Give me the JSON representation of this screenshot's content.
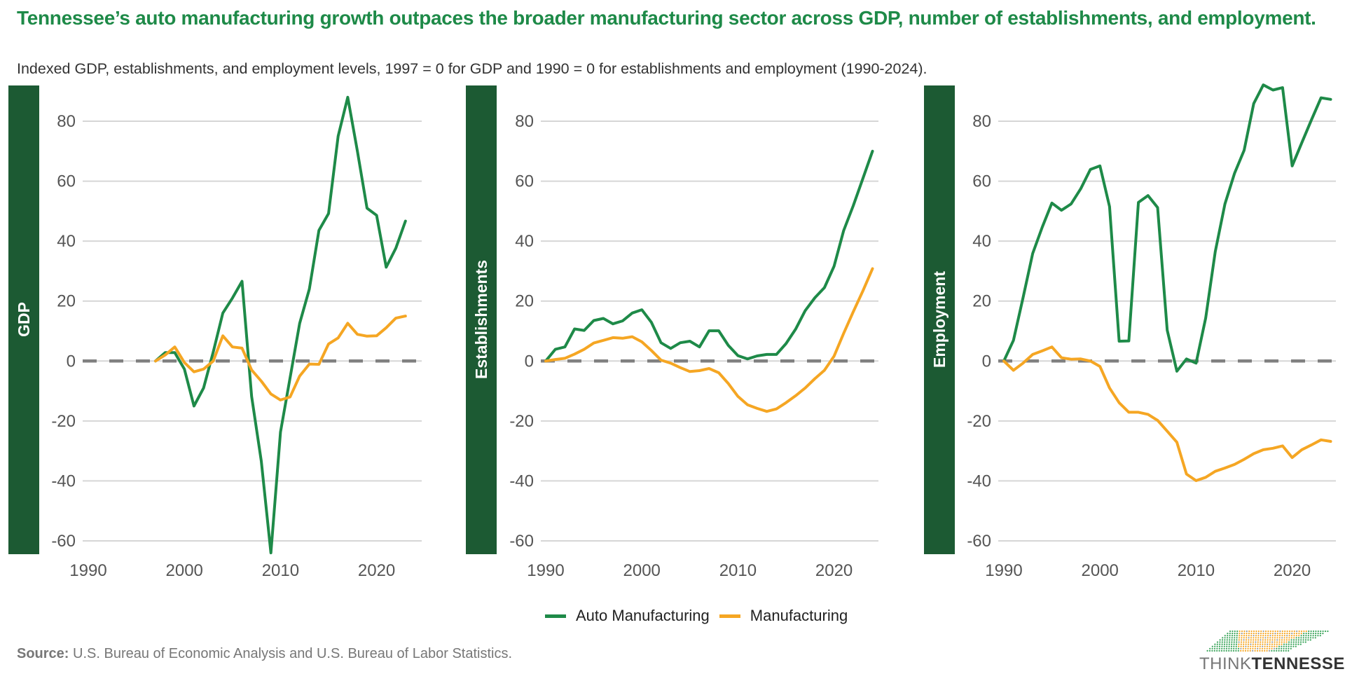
{
  "header": {
    "title": "Tennessee’s auto manufacturing growth outpaces the broader manufacturing sector across GDP, number of establishments, and employment.",
    "subtitle": "Indexed GDP, establishments, and employment levels, 1997 = 0 for GDP and 1990 = 0 for establishments and employment (1990-2024)."
  },
  "legend": {
    "items": [
      {
        "label": "Auto Manufacturing",
        "color": "#1e8a48"
      },
      {
        "label": "Manufacturing",
        "color": "#f5a623"
      }
    ]
  },
  "footer": {
    "source_label": "Source:",
    "source_text": "U.S. Bureau of Economic Analysis and U.S. Bureau of Labor Statistics.",
    "logo_text_light": "THINK",
    "logo_text_bold": "TENNESSEE"
  },
  "colors": {
    "auto": "#1e8a48",
    "manufacturing": "#f5a623",
    "strip": "#1c5a33",
    "zero_line": "#808080",
    "grid": "#d6d6d6"
  },
  "chart_data": [
    {
      "type": "line",
      "strip_label": "GDP",
      "xlim": [
        1990,
        2024
      ],
      "ylim": [
        -60,
        90
      ],
      "xticks": [
        1990,
        2000,
        2010,
        2020
      ],
      "yticks": [
        -60,
        -40,
        -20,
        0,
        20,
        40,
        60,
        80
      ],
      "zero_line": "dashed",
      "grid": true,
      "x": [
        1997,
        1998,
        1999,
        2000,
        2001,
        2002,
        2003,
        2004,
        2005,
        2006,
        2007,
        2008,
        2009,
        2010,
        2011,
        2012,
        2013,
        2014,
        2015,
        2016,
        2017,
        2018,
        2019,
        2020,
        2021,
        2022,
        2023
      ],
      "series": [
        {
          "name": "Auto Manufacturing",
          "values": [
            0,
            2.8,
            2.8,
            -2.7,
            -15,
            -9,
            3,
            16,
            21,
            26.6,
            -11.8,
            -33.4,
            -64,
            -23.7,
            -5.6,
            12.6,
            24,
            43.6,
            49.2,
            75,
            88,
            70,
            51,
            48.6,
            31.3,
            37.6,
            46.7
          ]
        },
        {
          "name": "Manufacturing",
          "values": [
            0,
            2,
            4.7,
            -0.5,
            -3.6,
            -2.7,
            0,
            8.4,
            4.7,
            4.3,
            -3,
            -6.7,
            -11,
            -13,
            -12,
            -5,
            -1,
            -1.1,
            5.7,
            7.7,
            12.6,
            8.9,
            8.3,
            8.4,
            11.1,
            14.3,
            15
          ]
        }
      ]
    },
    {
      "type": "line",
      "strip_label": "Establishments",
      "xlim": [
        1990,
        2024
      ],
      "ylim": [
        -60,
        90
      ],
      "xticks": [
        1990,
        2000,
        2010,
        2020
      ],
      "yticks": [
        -60,
        -40,
        -20,
        0,
        20,
        40,
        60,
        80
      ],
      "zero_line": "dashed",
      "grid": true,
      "x": [
        1990,
        1991,
        1992,
        1993,
        1994,
        1995,
        1996,
        1997,
        1998,
        1999,
        2000,
        2001,
        2002,
        2003,
        2004,
        2005,
        2006,
        2007,
        2008,
        2009,
        2010,
        2011,
        2012,
        2013,
        2014,
        2015,
        2016,
        2017,
        2018,
        2019,
        2020,
        2021,
        2022,
        2023,
        2024
      ],
      "series": [
        {
          "name": "Auto Manufacturing",
          "values": [
            0,
            3.9,
            4.7,
            10.7,
            10.2,
            13.5,
            14.2,
            12.4,
            13.4,
            16,
            17.1,
            12.9,
            6.1,
            4.2,
            6.1,
            6.6,
            4.7,
            10.1,
            10.1,
            5.2,
            1.8,
            0.7,
            1.7,
            2.2,
            2.2,
            5.8,
            10.6,
            16.8,
            21.1,
            24.5,
            31.6,
            43.5,
            51.8,
            60.9,
            70
          ]
        },
        {
          "name": "Manufacturing",
          "values": [
            0,
            0.5,
            0.9,
            2.3,
            3.9,
            6,
            6.9,
            7.8,
            7.6,
            8.1,
            6.4,
            3.5,
            0.3,
            -0.7,
            -2.2,
            -3.5,
            -3.2,
            -2.5,
            -3.9,
            -7.5,
            -11.8,
            -14.6,
            -15.8,
            -16.8,
            -16,
            -13.9,
            -11.6,
            -9,
            -5.9,
            -3.1,
            1.6,
            9.2,
            16.4,
            23.4,
            30.8
          ]
        }
      ]
    },
    {
      "type": "line",
      "strip_label": "Employment",
      "xlim": [
        1990,
        2024
      ],
      "ylim": [
        -60,
        90
      ],
      "xticks": [
        1990,
        2000,
        2010,
        2020
      ],
      "yticks": [
        -60,
        -40,
        -20,
        0,
        20,
        40,
        60,
        80
      ],
      "zero_line": "dashed",
      "grid": true,
      "x": [
        1990,
        1991,
        1992,
        1993,
        1994,
        1995,
        1996,
        1997,
        1998,
        1999,
        2000,
        2001,
        2002,
        2003,
        2004,
        2005,
        2006,
        2007,
        2008,
        2009,
        2010,
        2011,
        2012,
        2013,
        2014,
        2015,
        2016,
        2017,
        2018,
        2019,
        2020,
        2021,
        2022,
        2023,
        2024
      ],
      "series": [
        {
          "name": "Auto Manufacturing",
          "values": [
            0,
            6.9,
            21.1,
            35.9,
            44.7,
            52.7,
            50.3,
            52.4,
            57.5,
            63.9,
            65.1,
            51.5,
            6.6,
            6.7,
            52.9,
            55.2,
            51.2,
            10.3,
            -3.4,
            0.7,
            -0.7,
            14.3,
            36.5,
            52.4,
            62.6,
            70.3,
            85.9,
            92.1,
            90.4,
            91.2,
            65.1,
            72.8,
            80.4,
            87.8,
            87.3
          ]
        },
        {
          "name": "Manufacturing",
          "values": [
            0,
            -3.1,
            -0.7,
            2.2,
            3.4,
            4.7,
            1.1,
            0.6,
            0.7,
            0,
            -1.8,
            -9,
            -13.9,
            -17.1,
            -17.1,
            -17.8,
            -19.8,
            -23.4,
            -27.1,
            -37.7,
            -39.9,
            -38.8,
            -36.8,
            -35.7,
            -34.5,
            -32.8,
            -30.9,
            -29.6,
            -29.1,
            -28.3,
            -32.2,
            -29.6,
            -28,
            -26.3,
            -26.8
          ]
        }
      ]
    }
  ]
}
